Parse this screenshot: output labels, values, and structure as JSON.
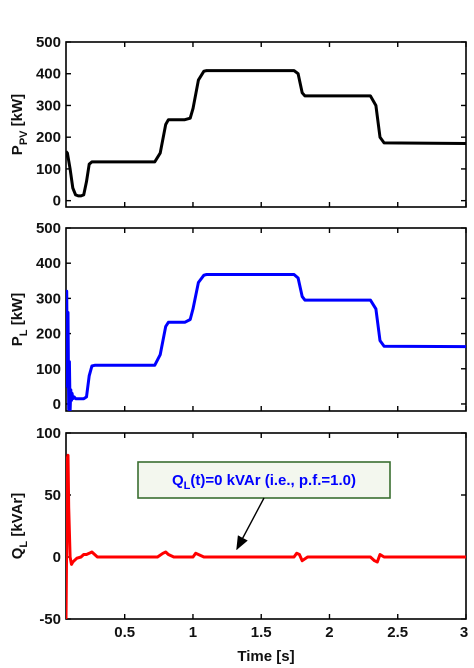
{
  "colors": {
    "pv": "#000000",
    "load": "#0000ff",
    "reactive": "#ff0000",
    "annotation_text": "#0000ff",
    "annotation_border": "#3a6e30",
    "annotation_fill": "#f3f7ee"
  },
  "chart_data": [
    {
      "type": "line",
      "ylabel": "P_PV [kW]",
      "ylabel_main": "P",
      "ylabel_sub": "PV",
      "ylabel_unit": " [kW]",
      "xlim": [
        0.07,
        3.0
      ],
      "ylim": [
        -20,
        500
      ],
      "yticks": [
        0,
        100,
        200,
        300,
        400,
        500
      ],
      "xticks": [
        0.5,
        1,
        1.5,
        2,
        2.5,
        3
      ],
      "xtick_labels": [
        "",
        "",
        "",
        "",
        "",
        ""
      ],
      "series": [
        {
          "color": "#000000",
          "x": [
            0.07,
            0.08,
            0.1,
            0.12,
            0.14,
            0.16,
            0.18,
            0.2,
            0.22,
            0.24,
            0.26,
            0.28,
            0.3,
            0.72,
            0.76,
            0.8,
            0.82,
            0.9,
            0.94,
            0.98,
            1.0,
            1.04,
            1.08,
            1.1,
            1.74,
            1.77,
            1.8,
            1.82,
            2.3,
            2.34,
            2.37,
            2.4,
            3.0
          ],
          "y": [
            155,
            150,
            100,
            40,
            18,
            15,
            15,
            18,
            60,
            115,
            122,
            122,
            122,
            122,
            150,
            240,
            255,
            255,
            255,
            260,
            290,
            380,
            408,
            410,
            410,
            400,
            340,
            330,
            330,
            300,
            200,
            182,
            180
          ]
        }
      ]
    },
    {
      "type": "line",
      "ylabel": "P_L [kW]",
      "ylabel_main": "P",
      "ylabel_sub": "L",
      "ylabel_unit": " [kW]",
      "xlim": [
        0.07,
        3.0
      ],
      "ylim": [
        -20,
        500
      ],
      "yticks": [
        0,
        100,
        200,
        300,
        400,
        500
      ],
      "xticks": [
        0.5,
        1,
        1.5,
        2,
        2.5,
        3
      ],
      "xtick_labels": [
        "",
        "",
        "",
        "",
        "",
        ""
      ],
      "series": [
        {
          "color": "#0000ff",
          "x": [
            0.07,
            0.075,
            0.08,
            0.085,
            0.09,
            0.095,
            0.1,
            0.105,
            0.11,
            0.115,
            0.12,
            0.13,
            0.14,
            0.16,
            0.2,
            0.22,
            0.24,
            0.26,
            0.28,
            0.3,
            0.72,
            0.76,
            0.8,
            0.82,
            0.9,
            0.94,
            0.98,
            1.0,
            1.04,
            1.08,
            1.1,
            1.74,
            1.77,
            1.8,
            1.82,
            2.3,
            2.34,
            2.37,
            2.4,
            3.0
          ],
          "y": [
            170,
            320,
            50,
            260,
            -15,
            120,
            -20,
            40,
            10,
            30,
            15,
            20,
            15,
            15,
            15,
            20,
            80,
            108,
            110,
            110,
            110,
            140,
            220,
            232,
            232,
            232,
            240,
            270,
            345,
            366,
            368,
            368,
            358,
            305,
            295,
            295,
            270,
            180,
            164,
            163
          ]
        }
      ]
    },
    {
      "type": "line",
      "ylabel": "Q_L [kVAr]",
      "ylabel_main": "Q",
      "ylabel_sub": "L",
      "ylabel_unit": " [kVAr]",
      "xlim": [
        0.07,
        3.0
      ],
      "ylim": [
        -50,
        100
      ],
      "yticks": [
        -50,
        0,
        50,
        100
      ],
      "xticks": [
        0.5,
        1,
        1.5,
        2,
        2.5,
        3
      ],
      "xtick_labels": [
        "0.5",
        "1",
        "1.5",
        "2",
        "2.5",
        "3"
      ],
      "xlabel": "Time [s]",
      "annotation": {
        "prefix": "Q",
        "sub": "L",
        "text": "(t)=0 kVAr (i.e., p.f.=1.0)",
        "arrow_to": [
          1.3,
          0
        ]
      },
      "series": [
        {
          "color": "#ff0000",
          "x": [
            0.07,
            0.08,
            0.085,
            0.09,
            0.1,
            0.11,
            0.12,
            0.13,
            0.15,
            0.18,
            0.2,
            0.22,
            0.24,
            0.26,
            0.3,
            0.34,
            0.4,
            0.74,
            0.78,
            0.8,
            0.82,
            0.86,
            1.0,
            1.02,
            1.04,
            1.08,
            1.74,
            1.76,
            1.78,
            1.8,
            1.84,
            2.3,
            2.33,
            2.35,
            2.37,
            2.4,
            3.0
          ],
          "y": [
            -50,
            80,
            82,
            40,
            0,
            -6,
            -4,
            -3,
            -1,
            0,
            2,
            2,
            3,
            4,
            0,
            0,
            0,
            0,
            3,
            4,
            2,
            0,
            0,
            3,
            2,
            0,
            0,
            3,
            2,
            -3,
            0,
            0,
            -3,
            -4,
            2,
            0,
            0
          ]
        }
      ]
    }
  ]
}
